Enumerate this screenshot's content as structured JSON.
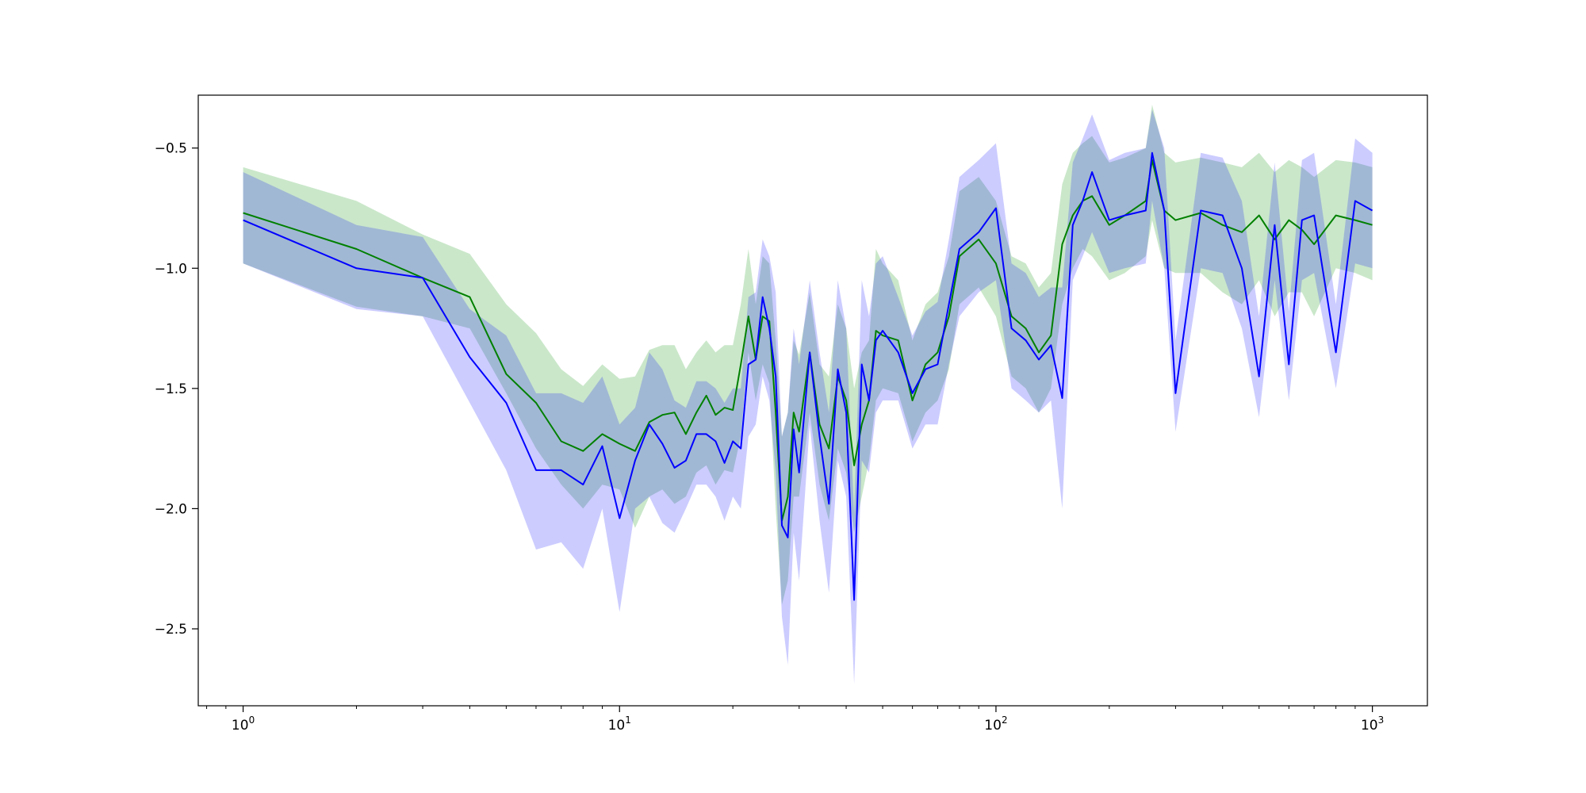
{
  "chart_data": {
    "type": "line",
    "title": "",
    "xlabel": "",
    "ylabel": "",
    "xscale": "log",
    "xlim": [
      0.76,
      1400
    ],
    "ylim": [
      -2.82,
      -0.28
    ],
    "grid": false,
    "legend": "none",
    "x_ticks": [
      {
        "base": "10",
        "exp": "0",
        "value": 1
      },
      {
        "base": "10",
        "exp": "1",
        "value": 10
      },
      {
        "base": "10",
        "exp": "2",
        "value": 100
      },
      {
        "base": "10",
        "exp": "3",
        "value": 1000
      }
    ],
    "y_ticks": [
      {
        "label": "−0.5",
        "value": -0.5
      },
      {
        "label": "−1.0",
        "value": -1.0
      },
      {
        "label": "−1.5",
        "value": -1.5
      },
      {
        "label": "−2.0",
        "value": -2.0
      },
      {
        "label": "−2.5",
        "value": -2.5
      }
    ],
    "series": [
      {
        "color": "#008000",
        "band_color": "#2ca02c",
        "band_opacity": 0.25,
        "x": [
          1,
          2,
          3,
          4,
          5,
          6,
          7,
          8,
          9,
          10,
          11,
          12,
          13,
          14,
          15,
          16,
          17,
          18,
          19,
          20,
          21,
          22,
          23,
          24,
          25,
          26,
          27,
          28,
          29,
          30,
          32,
          34,
          36,
          38,
          40,
          42,
          44,
          46,
          48,
          50,
          55,
          60,
          65,
          70,
          75,
          80,
          90,
          100,
          110,
          120,
          130,
          140,
          150,
          160,
          170,
          180,
          200,
          220,
          250,
          260,
          280,
          300,
          350,
          400,
          450,
          500,
          550,
          600,
          650,
          700,
          800,
          900,
          1000
        ],
        "y": [
          -0.77,
          -0.92,
          -1.04,
          -1.12,
          -1.44,
          -1.56,
          -1.72,
          -1.76,
          -1.69,
          -1.73,
          -1.76,
          -1.64,
          -1.61,
          -1.6,
          -1.69,
          -1.6,
          -1.53,
          -1.61,
          -1.58,
          -1.59,
          -1.4,
          -1.2,
          -1.38,
          -1.2,
          -1.22,
          -1.6,
          -2.05,
          -1.95,
          -1.6,
          -1.68,
          -1.35,
          -1.65,
          -1.75,
          -1.45,
          -1.55,
          -1.82,
          -1.65,
          -1.55,
          -1.26,
          -1.28,
          -1.3,
          -1.55,
          -1.4,
          -1.35,
          -1.2,
          -0.95,
          -0.88,
          -0.98,
          -1.2,
          -1.25,
          -1.35,
          -1.28,
          -0.9,
          -0.78,
          -0.72,
          -0.7,
          -0.82,
          -0.78,
          -0.72,
          -0.55,
          -0.76,
          -0.8,
          -0.77,
          -0.82,
          -0.85,
          -0.78,
          -0.88,
          -0.8,
          -0.84,
          -0.9,
          -0.78,
          -0.8,
          -0.82
        ],
        "lower": [
          -0.98,
          -1.16,
          -1.2,
          -1.25,
          -1.52,
          -1.75,
          -1.9,
          -2.0,
          -1.9,
          -1.92,
          -2.08,
          -1.95,
          -1.92,
          -1.98,
          -1.95,
          -1.85,
          -1.82,
          -1.9,
          -1.84,
          -1.85,
          -1.7,
          -1.35,
          -1.55,
          -1.4,
          -1.48,
          -2.0,
          -2.4,
          -2.3,
          -1.95,
          -1.95,
          -1.6,
          -1.9,
          -2.05,
          -1.75,
          -1.85,
          -2.1,
          -1.95,
          -1.8,
          -1.55,
          -1.5,
          -1.52,
          -1.72,
          -1.6,
          -1.55,
          -1.42,
          -1.15,
          -1.08,
          -1.2,
          -1.45,
          -1.5,
          -1.6,
          -1.5,
          -1.15,
          -1.0,
          -0.92,
          -0.95,
          -1.05,
          -1.02,
          -0.95,
          -0.8,
          -1.0,
          -1.02,
          -1.02,
          -1.1,
          -1.15,
          -1.05,
          -1.2,
          -1.1,
          -1.1,
          -1.2,
          -1.0,
          -1.02,
          -1.05
        ],
        "upper": [
          -0.58,
          -0.72,
          -0.86,
          -0.94,
          -1.15,
          -1.27,
          -1.42,
          -1.49,
          -1.4,
          -1.46,
          -1.45,
          -1.34,
          -1.32,
          -1.32,
          -1.42,
          -1.35,
          -1.3,
          -1.35,
          -1.32,
          -1.32,
          -1.15,
          -0.92,
          -1.15,
          -0.95,
          -0.98,
          -1.3,
          -1.7,
          -1.6,
          -1.3,
          -1.36,
          -1.1,
          -1.4,
          -1.45,
          -1.15,
          -1.25,
          -1.5,
          -1.35,
          -1.3,
          -0.92,
          -0.98,
          -1.05,
          -1.3,
          -1.15,
          -1.1,
          -0.95,
          -0.68,
          -0.62,
          -0.72,
          -0.95,
          -0.98,
          -1.08,
          -1.02,
          -0.65,
          -0.52,
          -0.48,
          -0.45,
          -0.56,
          -0.54,
          -0.5,
          -0.32,
          -0.52,
          -0.56,
          -0.54,
          -0.56,
          -0.58,
          -0.52,
          -0.6,
          -0.55,
          -0.58,
          -0.62,
          -0.55,
          -0.56,
          -0.58
        ]
      },
      {
        "color": "#0000ff",
        "band_color": "#0000ff",
        "band_opacity": 0.2,
        "x": [
          1,
          2,
          3,
          4,
          5,
          6,
          7,
          8,
          9,
          10,
          11,
          12,
          13,
          14,
          15,
          16,
          17,
          18,
          19,
          20,
          21,
          22,
          23,
          24,
          25,
          26,
          27,
          28,
          29,
          30,
          32,
          34,
          36,
          38,
          40,
          42,
          44,
          46,
          48,
          50,
          55,
          60,
          65,
          70,
          75,
          80,
          90,
          100,
          110,
          120,
          130,
          140,
          150,
          160,
          170,
          180,
          200,
          220,
          250,
          260,
          280,
          300,
          350,
          400,
          450,
          500,
          550,
          600,
          650,
          700,
          800,
          900,
          1000
        ],
        "y": [
          -0.8,
          -1.0,
          -1.04,
          -1.37,
          -1.56,
          -1.84,
          -1.84,
          -1.9,
          -1.74,
          -2.04,
          -1.8,
          -1.65,
          -1.73,
          -1.83,
          -1.8,
          -1.69,
          -1.69,
          -1.72,
          -1.81,
          -1.72,
          -1.75,
          -1.4,
          -1.38,
          -1.12,
          -1.25,
          -1.45,
          -2.07,
          -2.12,
          -1.67,
          -1.85,
          -1.35,
          -1.7,
          -1.98,
          -1.42,
          -1.6,
          -2.38,
          -1.4,
          -1.55,
          -1.3,
          -1.26,
          -1.35,
          -1.52,
          -1.42,
          -1.4,
          -1.15,
          -0.92,
          -0.85,
          -0.75,
          -1.25,
          -1.3,
          -1.38,
          -1.32,
          -1.54,
          -0.82,
          -0.72,
          -0.6,
          -0.8,
          -0.78,
          -0.76,
          -0.52,
          -0.76,
          -1.52,
          -0.76,
          -0.78,
          -1.0,
          -1.45,
          -0.82,
          -1.4,
          -0.8,
          -0.78,
          -1.35,
          -0.72,
          -0.76
        ],
        "lower": [
          -0.98,
          -1.17,
          -1.2,
          -1.56,
          -1.84,
          -2.17,
          -2.14,
          -2.25,
          -2.0,
          -2.43,
          -2.0,
          -1.95,
          -2.06,
          -2.1,
          -2.0,
          -1.9,
          -1.9,
          -1.95,
          -2.05,
          -1.95,
          -2.0,
          -1.7,
          -1.65,
          -1.45,
          -1.55,
          -1.85,
          -2.45,
          -2.65,
          -2.1,
          -2.3,
          -1.65,
          -2.05,
          -2.35,
          -1.8,
          -1.95,
          -2.73,
          -1.8,
          -1.85,
          -1.6,
          -1.55,
          -1.55,
          -1.75,
          -1.65,
          -1.65,
          -1.4,
          -1.2,
          -1.1,
          -1.05,
          -1.5,
          -1.55,
          -1.6,
          -1.55,
          -2.0,
          -1.05,
          -0.95,
          -0.85,
          -1.02,
          -1.0,
          -0.98,
          -0.72,
          -1.0,
          -1.68,
          -1.0,
          -1.02,
          -1.25,
          -1.62,
          -1.05,
          -1.55,
          -1.05,
          -1.02,
          -1.5,
          -0.98,
          -1.0
        ],
        "upper": [
          -0.6,
          -0.82,
          -0.87,
          -1.17,
          -1.28,
          -1.52,
          -1.52,
          -1.56,
          -1.45,
          -1.65,
          -1.58,
          -1.35,
          -1.42,
          -1.55,
          -1.58,
          -1.47,
          -1.47,
          -1.5,
          -1.56,
          -1.5,
          -1.5,
          -1.12,
          -1.1,
          -0.88,
          -0.95,
          -1.1,
          -1.7,
          -1.6,
          -1.25,
          -1.4,
          -1.05,
          -1.35,
          -1.6,
          -1.05,
          -1.25,
          -2.02,
          -1.05,
          -1.2,
          -0.98,
          -0.95,
          -1.12,
          -1.28,
          -1.18,
          -1.14,
          -0.88,
          -0.62,
          -0.55,
          -0.48,
          -0.98,
          -1.02,
          -1.12,
          -1.08,
          -1.08,
          -0.56,
          -0.46,
          -0.36,
          -0.55,
          -0.52,
          -0.5,
          -0.34,
          -0.5,
          -1.3,
          -0.52,
          -0.54,
          -0.72,
          -1.2,
          -0.56,
          -1.18,
          -0.55,
          -0.52,
          -1.15,
          -0.46,
          -0.52
        ]
      }
    ]
  }
}
